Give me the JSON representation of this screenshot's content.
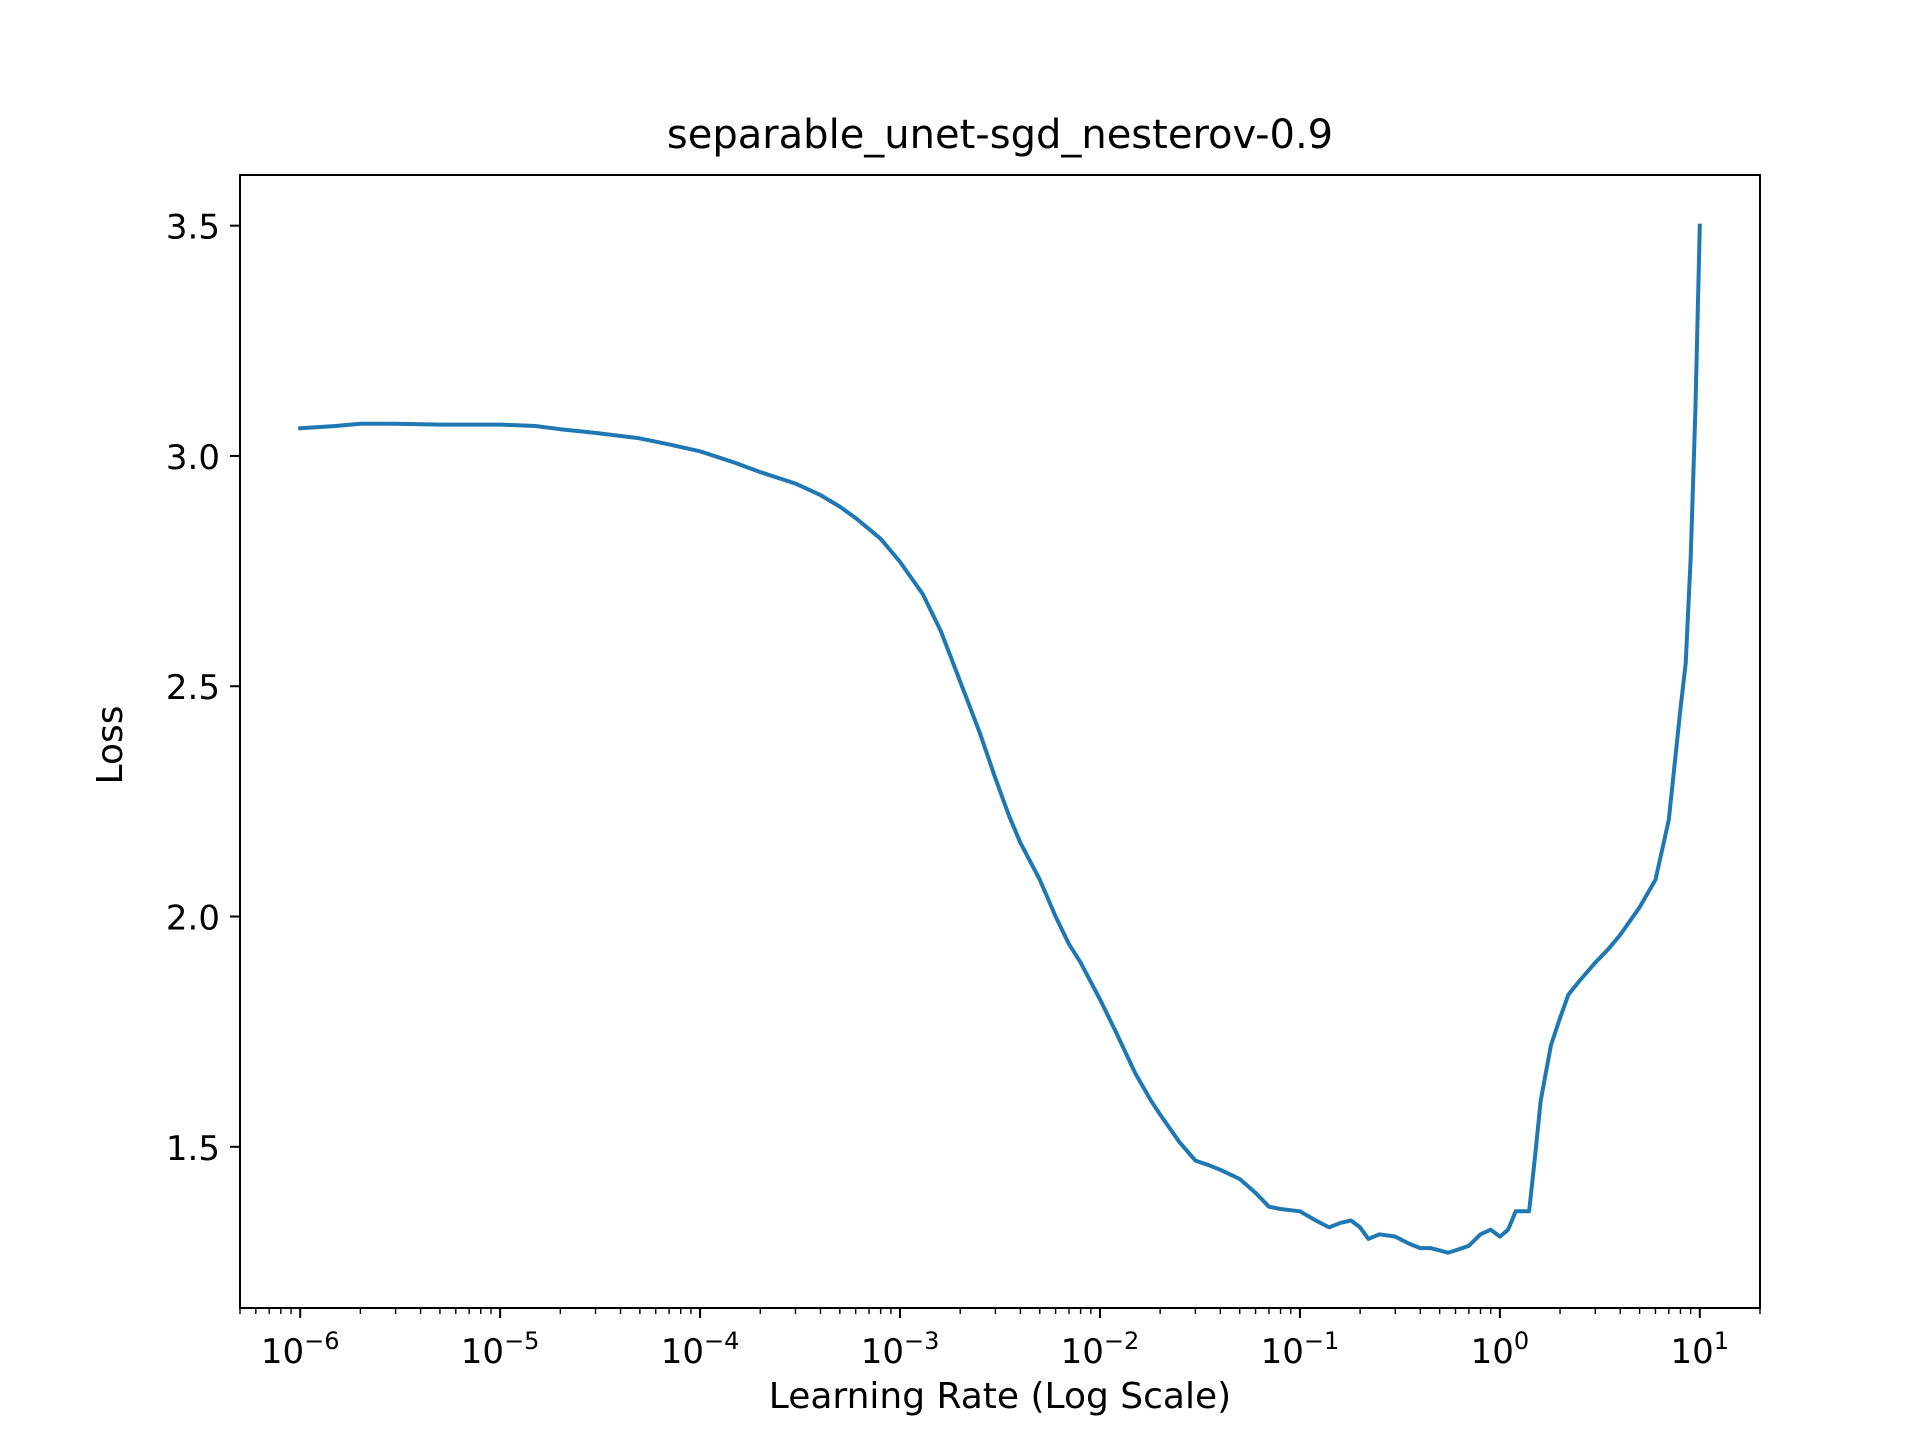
{
  "chart_data": {
    "type": "line",
    "title": "separable_unet-sgd_nesterov-0.9",
    "xlabel": "Learning Rate (Log Scale)",
    "ylabel": "Loss",
    "xscale": "log",
    "xlim": [
      5e-07,
      20
    ],
    "ylim": [
      1.15,
      3.61
    ],
    "xticks": [
      {
        "value": 1e-06,
        "base": "10",
        "exp": "−6"
      },
      {
        "value": 1e-05,
        "base": "10",
        "exp": "−5"
      },
      {
        "value": 0.0001,
        "base": "10",
        "exp": "−4"
      },
      {
        "value": 0.001,
        "base": "10",
        "exp": "−3"
      },
      {
        "value": 0.01,
        "base": "10",
        "exp": "−2"
      },
      {
        "value": 0.1,
        "base": "10",
        "exp": "−1"
      },
      {
        "value": 1,
        "base": "10",
        "exp": "0"
      },
      {
        "value": 10,
        "base": "10",
        "exp": "1"
      }
    ],
    "yticks": [
      {
        "value": 1.5,
        "label": "1.5"
      },
      {
        "value": 2.0,
        "label": "2.0"
      },
      {
        "value": 2.5,
        "label": "2.5"
      },
      {
        "value": 3.0,
        "label": "3.0"
      },
      {
        "value": 3.5,
        "label": "3.5"
      }
    ],
    "grid": false,
    "line_color": "#1f77b4",
    "series": [
      {
        "x": [
          1e-06,
          1.5e-06,
          2e-06,
          3e-06,
          5e-06,
          7e-06,
          1e-05,
          1.5e-05,
          2e-05,
          3e-05,
          5e-05,
          7e-05,
          0.0001,
          0.00015,
          0.0002,
          0.0003,
          0.0004,
          0.0005,
          0.0006,
          0.0008,
          0.001,
          0.0013,
          0.0016,
          0.002,
          0.0025,
          0.003,
          0.0035,
          0.004,
          0.005,
          0.006,
          0.007,
          0.008,
          0.01,
          0.012,
          0.015,
          0.018,
          0.02,
          0.025,
          0.03,
          0.035,
          0.04,
          0.05,
          0.06,
          0.07,
          0.08,
          0.1,
          0.12,
          0.14,
          0.16,
          0.18,
          0.2,
          0.22,
          0.25,
          0.3,
          0.35,
          0.4,
          0.45,
          0.5,
          0.55,
          0.6,
          0.7,
          0.8,
          0.9,
          1.0,
          1.1,
          1.2,
          1.4,
          1.5,
          1.6,
          1.8,
          2.0,
          2.2,
          2.5,
          3.0,
          3.5,
          4.0,
          5.0,
          6.0,
          7.0,
          8.0,
          8.5,
          9.0,
          9.5,
          10.0
        ],
        "y": [
          3.06,
          3.065,
          3.07,
          3.07,
          3.068,
          3.068,
          3.068,
          3.065,
          3.058,
          3.05,
          3.038,
          3.025,
          3.01,
          2.985,
          2.965,
          2.94,
          2.915,
          2.89,
          2.865,
          2.82,
          2.77,
          2.7,
          2.62,
          2.51,
          2.4,
          2.3,
          2.22,
          2.16,
          2.08,
          2.0,
          1.94,
          1.9,
          1.82,
          1.75,
          1.66,
          1.6,
          1.57,
          1.51,
          1.47,
          1.46,
          1.45,
          1.43,
          1.4,
          1.37,
          1.365,
          1.36,
          1.34,
          1.325,
          1.335,
          1.34,
          1.325,
          1.3,
          1.31,
          1.305,
          1.29,
          1.28,
          1.28,
          1.275,
          1.27,
          1.275,
          1.285,
          1.31,
          1.32,
          1.305,
          1.32,
          1.36,
          1.36,
          1.48,
          1.6,
          1.72,
          1.78,
          1.83,
          1.86,
          1.9,
          1.93,
          1.96,
          2.02,
          2.08,
          2.21,
          2.45,
          2.55,
          2.78,
          3.1,
          3.5
        ]
      }
    ]
  }
}
